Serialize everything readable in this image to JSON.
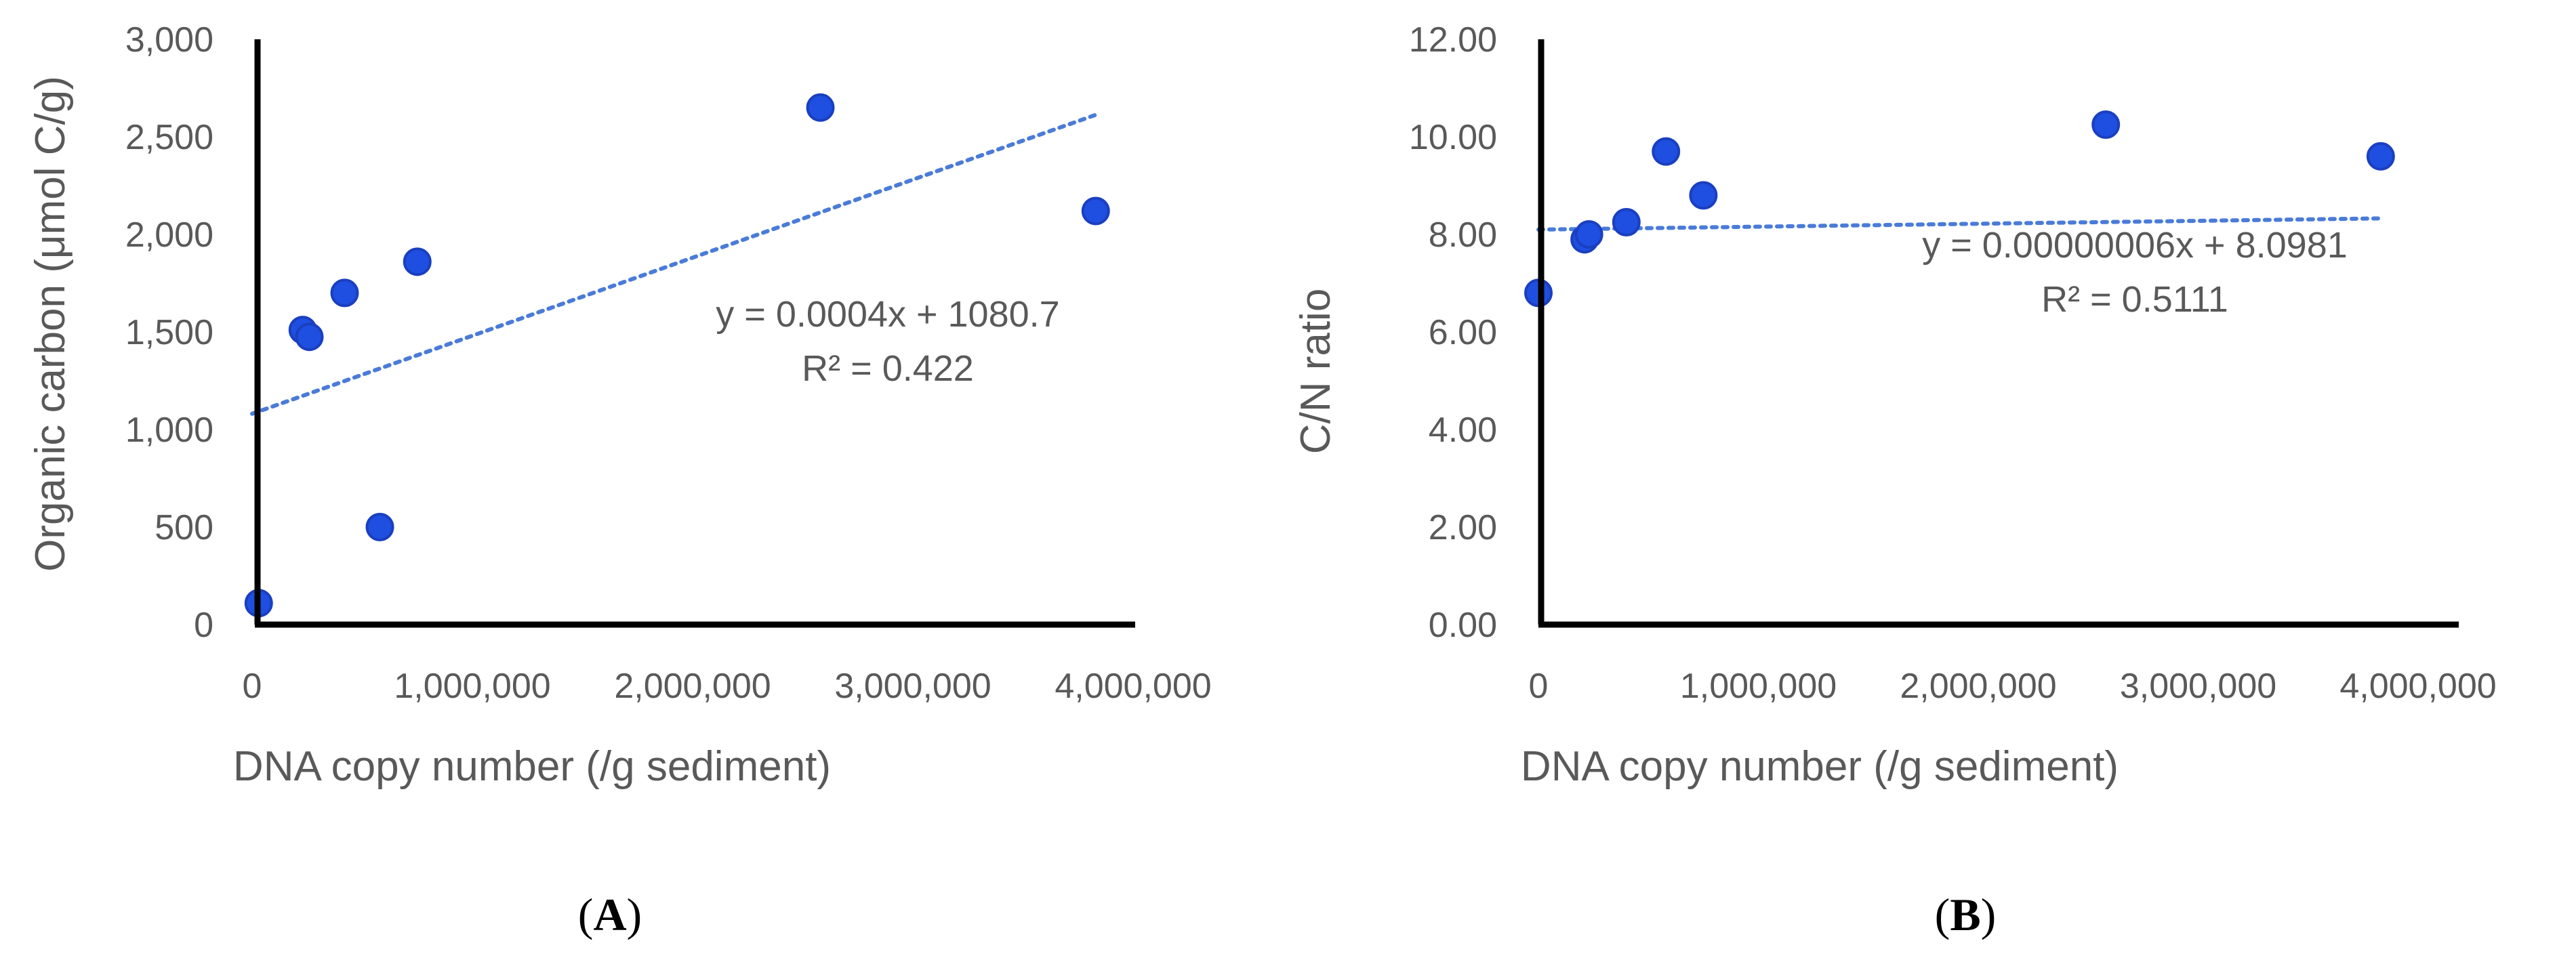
{
  "colors": {
    "marker": "#1f4fe0",
    "marker_edge": "#1a3fc0",
    "trendline": "#4a7bd8",
    "axis": "#000000",
    "text": "#595959"
  },
  "chart_data": [
    {
      "type": "scatter",
      "panel": {
        "open": "(",
        "letter": "A",
        "close": ")"
      },
      "xlabel": "DNA copy number (/g sediment)",
      "ylabel": "Organic carbon (μmol C/g)",
      "xlim": [
        0,
        4000000
      ],
      "ylim": [
        0,
        3000
      ],
      "x_ticks": [
        0,
        1000000,
        2000000,
        3000000,
        4000000
      ],
      "x_tick_labels": [
        "0",
        "1,000,000",
        "2,000,000",
        "3,000,000",
        "4,000,000"
      ],
      "y_ticks": [
        0,
        500,
        1000,
        1500,
        2000,
        2500,
        3000
      ],
      "y_tick_labels": [
        "0",
        "500",
        "1,000",
        "1,500",
        "2,000",
        "2,500",
        "3,000"
      ],
      "grid": false,
      "x": [
        30000,
        230000,
        260000,
        420000,
        580000,
        750000,
        2580000,
        3830000
      ],
      "y": [
        110,
        1510,
        1475,
        1700,
        500,
        1860,
        2650,
        2120
      ],
      "trendline": {
        "slope": 0.0004,
        "intercept": 1080.7,
        "x_range": [
          0,
          3830000
        ]
      },
      "annotations": [
        "y = 0.0004x + 1080.7",
        "R² = 0.422"
      ]
    },
    {
      "type": "scatter",
      "panel": {
        "open": "(",
        "letter": "B",
        "close": ")"
      },
      "xlabel": "DNA copy number (/g sediment)",
      "ylabel": "C/N ratio",
      "xlim": [
        0,
        4000000
      ],
      "ylim": [
        0,
        12
      ],
      "x_ticks": [
        0,
        1000000,
        2000000,
        3000000,
        4000000
      ],
      "x_tick_labels": [
        "0",
        "1,000,000",
        "2,000,000",
        "3,000,000",
        "4,000,000"
      ],
      "y_ticks": [
        0,
        2,
        4,
        6,
        8,
        10,
        12
      ],
      "y_tick_labels": [
        "0.00",
        "2.00",
        "4.00",
        "6.00",
        "8.00",
        "10.00",
        "12.00"
      ],
      "grid": false,
      "x": [
        0,
        210000,
        230000,
        400000,
        580000,
        750000,
        2580000,
        3830000
      ],
      "y": [
        6.8,
        7.9,
        8.0,
        8.25,
        9.7,
        8.8,
        10.25,
        9.6
      ],
      "trendline": {
        "slope": 6e-08,
        "intercept": 8.0981,
        "x_range": [
          0,
          3830000
        ]
      },
      "annotations": [
        "y = 0.00000006x + 8.0981",
        "R² = 0.5111"
      ]
    }
  ]
}
